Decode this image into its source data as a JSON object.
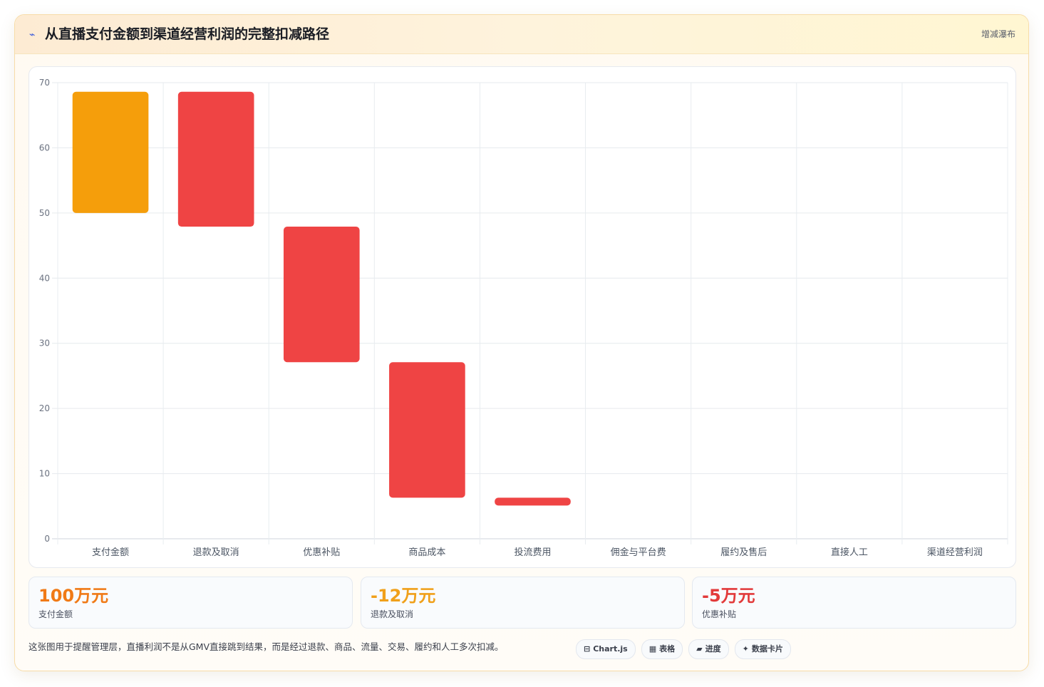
{
  "header": {
    "icon": "⌁",
    "title": "从直播支付金额到渠道经营利润的完整扣减路径",
    "tag": "增减瀑布"
  },
  "chart_data": {
    "type": "bar",
    "subtype": "waterfall",
    "categories": [
      "支付金额",
      "退款及取消",
      "优惠补贴",
      "商品成本",
      "投流费用",
      "佣金与平台费",
      "履约及售后",
      "直接人工",
      "渠道经营利润"
    ],
    "ranges": [
      [
        50,
        68.6
      ],
      [
        47.9,
        68.6
      ],
      [
        27.1,
        47.9
      ],
      [
        6.3,
        27.1
      ],
      [
        5.1,
        6.3
      ],
      null,
      null,
      null,
      null
    ],
    "colors": [
      "#f59e0b",
      "#ef4444",
      "#ef4444",
      "#ef4444",
      "#ef4444",
      null,
      null,
      null,
      null
    ],
    "ylim": [
      0,
      70
    ],
    "yticks": [
      0,
      10,
      20,
      30,
      40,
      50,
      60,
      70
    ],
    "grid": true,
    "legend": "none",
    "title": "",
    "xlabel": "",
    "ylabel": ""
  },
  "kpis": [
    {
      "value": "100万元",
      "label": "支付金额",
      "color": "#f07a16"
    },
    {
      "value": "-12万元",
      "label": "退款及取消",
      "color": "#f0a01a"
    },
    {
      "value": "-5万元",
      "label": "优惠补贴",
      "color": "#e23a3a"
    }
  ],
  "footnote": "这张图用于提醒管理层，直播利润不是从GMV直接跳到结果，而是经过退款、商品、流量、交易、履约和人工多次扣减。",
  "chips": [
    {
      "icon": "⊟",
      "label": "Chart.js"
    },
    {
      "icon": "▦",
      "label": "表格"
    },
    {
      "icon": "▰",
      "label": "进度"
    },
    {
      "icon": "✦",
      "label": "数据卡片"
    }
  ]
}
